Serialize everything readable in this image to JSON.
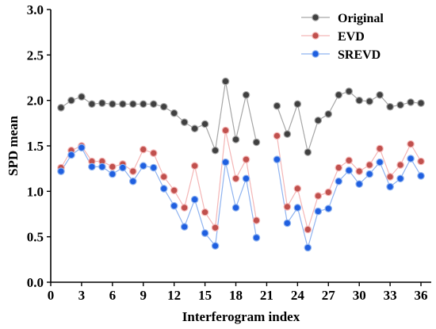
{
  "chart_data": {
    "type": "line",
    "xlabel": "Interferogram index",
    "ylabel": "SPD mean",
    "xlim": [
      0,
      37
    ],
    "ylim": [
      0,
      3
    ],
    "xticks": [
      0,
      3,
      6,
      9,
      12,
      15,
      18,
      21,
      24,
      27,
      30,
      33,
      36
    ],
    "yticks": [
      0.0,
      0.5,
      1.0,
      1.5,
      2.0,
      2.5,
      3.0
    ],
    "ytick_labels": [
      "0.0",
      "0.5",
      "1.0",
      "1.5",
      "2.0",
      "2.5",
      "3.0"
    ],
    "legend_position": "top-right",
    "x": [
      1,
      2,
      3,
      4,
      5,
      6,
      7,
      8,
      9,
      10,
      11,
      12,
      13,
      14,
      15,
      16,
      17,
      18,
      19,
      20,
      21,
      22,
      23,
      24,
      25,
      26,
      27,
      28,
      29,
      30,
      31,
      32,
      33,
      34,
      35,
      36
    ],
    "series": [
      {
        "name": "Original",
        "color": "#404040",
        "line_color": "#a6a6a6",
        "values": [
          1.92,
          2.0,
          2.04,
          1.96,
          1.97,
          1.96,
          1.96,
          1.96,
          1.96,
          1.96,
          1.93,
          1.86,
          1.76,
          1.69,
          1.74,
          1.45,
          2.21,
          1.57,
          2.06,
          1.54,
          null,
          1.94,
          1.63,
          1.96,
          1.43,
          1.78,
          1.85,
          2.06,
          2.1,
          2.0,
          1.99,
          2.06,
          1.93,
          1.95,
          1.98,
          1.97
        ]
      },
      {
        "name": "EVD",
        "color": "#c0504d",
        "line_color": "#f4b6b6",
        "values": [
          1.26,
          1.45,
          1.5,
          1.33,
          1.33,
          1.27,
          1.3,
          1.22,
          1.46,
          1.42,
          1.16,
          1.01,
          0.82,
          1.28,
          0.77,
          0.6,
          1.67,
          1.14,
          1.35,
          0.68,
          null,
          1.61,
          0.83,
          1.03,
          0.58,
          0.95,
          0.99,
          1.26,
          1.34,
          1.22,
          1.29,
          1.47,
          1.16,
          1.29,
          1.52,
          1.33
        ]
      },
      {
        "name": "SREVD",
        "color": "#1f5fe0",
        "line_color": "#8fb3f0",
        "values": [
          1.22,
          1.4,
          1.48,
          1.27,
          1.27,
          1.19,
          1.26,
          1.11,
          1.28,
          1.26,
          1.03,
          0.84,
          0.61,
          0.91,
          0.54,
          0.4,
          1.32,
          0.82,
          1.14,
          0.49,
          null,
          1.35,
          0.65,
          0.82,
          0.38,
          0.78,
          0.81,
          1.11,
          1.23,
          1.08,
          1.19,
          1.32,
          1.05,
          1.14,
          1.36,
          1.17
        ]
      }
    ]
  }
}
